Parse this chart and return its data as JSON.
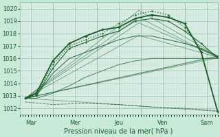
{
  "xlabel": "Pression niveau de la mer( hPa )",
  "ylim": [
    1011.5,
    1020.5
  ],
  "xlim": [
    0,
    216
  ],
  "bg_color": "#c8e8d8",
  "plot_bg_color": "#d8ede4",
  "grid_color_minor": "#b8d8c8",
  "grid_color_major": "#98c0b0",
  "line_color": "#1a5c28",
  "tick_label_color": "#1a5c28",
  "spine_color": "#98c0b0",
  "days": [
    "Mar",
    "Mer",
    "Jeu",
    "Ven",
    "Sam"
  ],
  "day_positions": [
    12,
    60,
    108,
    156,
    204
  ],
  "day_vlines": [
    36,
    84,
    132,
    180
  ],
  "total_hours": 216,
  "origin_x": 6,
  "origin_y": 1012.8,
  "fan_lines": [
    [
      6,
      1012.8,
      216,
      1011.75
    ],
    [
      6,
      1012.8,
      216,
      1016.05
    ],
    [
      6,
      1012.8,
      216,
      1016.15
    ],
    [
      6,
      1012.8,
      216,
      1016.2
    ],
    [
      6,
      1012.8,
      130,
      1019.85
    ],
    [
      6,
      1012.8,
      130,
      1019.3
    ],
    [
      6,
      1012.8,
      130,
      1018.85
    ],
    [
      6,
      1012.8,
      130,
      1017.85
    ]
  ],
  "fan_lines2": [
    [
      130,
      1019.85,
      216,
      1016.2
    ],
    [
      130,
      1019.3,
      216,
      1016.05
    ],
    [
      130,
      1018.85,
      216,
      1016.15
    ],
    [
      130,
      1017.85,
      216,
      1016.1
    ]
  ],
  "series": [
    {
      "xs": [
        6,
        18,
        36,
        54,
        72,
        90,
        108,
        126,
        144,
        162,
        180,
        198,
        216
      ],
      "ys": [
        1012.8,
        1013.2,
        1015.8,
        1017.2,
        1017.8,
        1018.3,
        1018.5,
        1019.2,
        1019.5,
        1019.3,
        1018.8,
        1016.5,
        1011.75
      ],
      "ls": "-",
      "lw": 1.3,
      "marker": "+",
      "ms": 2.5,
      "alpha": 1.0
    },
    {
      "xs": [
        6,
        18,
        36,
        54,
        72,
        90,
        108,
        126,
        144,
        162,
        180,
        198,
        216
      ],
      "ys": [
        1012.8,
        1013.1,
        1015.5,
        1017.0,
        1017.5,
        1018.0,
        1018.8,
        1019.5,
        1019.8,
        1019.5,
        1018.5,
        1016.8,
        1016.2
      ],
      "ls": ":",
      "lw": 1.0,
      "marker": "+",
      "ms": 2.0,
      "alpha": 0.9
    },
    {
      "xs": [
        6,
        18,
        36,
        54,
        72,
        90,
        108,
        126,
        144,
        162,
        180,
        198,
        216
      ],
      "ys": [
        1012.8,
        1013.0,
        1015.2,
        1016.8,
        1017.3,
        1017.8,
        1018.2,
        1019.0,
        1019.2,
        1019.0,
        1018.2,
        1017.2,
        1016.05
      ],
      "ls": "-",
      "lw": 0.9,
      "marker": "+",
      "ms": 1.8,
      "alpha": 0.85
    },
    {
      "xs": [
        6,
        18,
        36,
        54,
        72,
        90,
        108,
        126,
        144,
        162,
        180,
        198,
        216
      ],
      "ys": [
        1012.8,
        1013.0,
        1014.8,
        1016.0,
        1016.5,
        1017.0,
        1017.5,
        1017.8,
        1017.8,
        1017.5,
        1017.2,
        1016.8,
        1016.15
      ],
      "ls": "-",
      "lw": 0.8,
      "marker": null,
      "ms": 0,
      "alpha": 0.8
    },
    {
      "xs": [
        6,
        18,
        36,
        54,
        72,
        90,
        108,
        126,
        144,
        162,
        180,
        198,
        216
      ],
      "ys": [
        1012.8,
        1012.8,
        1013.2,
        1013.8,
        1014.5,
        1015.0,
        1015.5,
        1015.8,
        1016.0,
        1016.0,
        1016.0,
        1016.0,
        1016.0
      ],
      "ls": "-",
      "lw": 0.7,
      "marker": null,
      "ms": 0,
      "alpha": 0.75
    },
    {
      "xs": [
        6,
        36,
        72,
        108,
        144,
        180,
        216
      ],
      "ys": [
        1012.5,
        1012.3,
        1012.4,
        1012.3,
        1012.1,
        1012.0,
        1011.8
      ],
      "ls": "--",
      "lw": 0.7,
      "marker": null,
      "ms": 0,
      "alpha": 0.7
    }
  ],
  "yticks": [
    1012,
    1013,
    1014,
    1015,
    1016,
    1017,
    1018,
    1019,
    1020
  ],
  "xlabel_fontsize": 7,
  "tick_fontsize": 6
}
